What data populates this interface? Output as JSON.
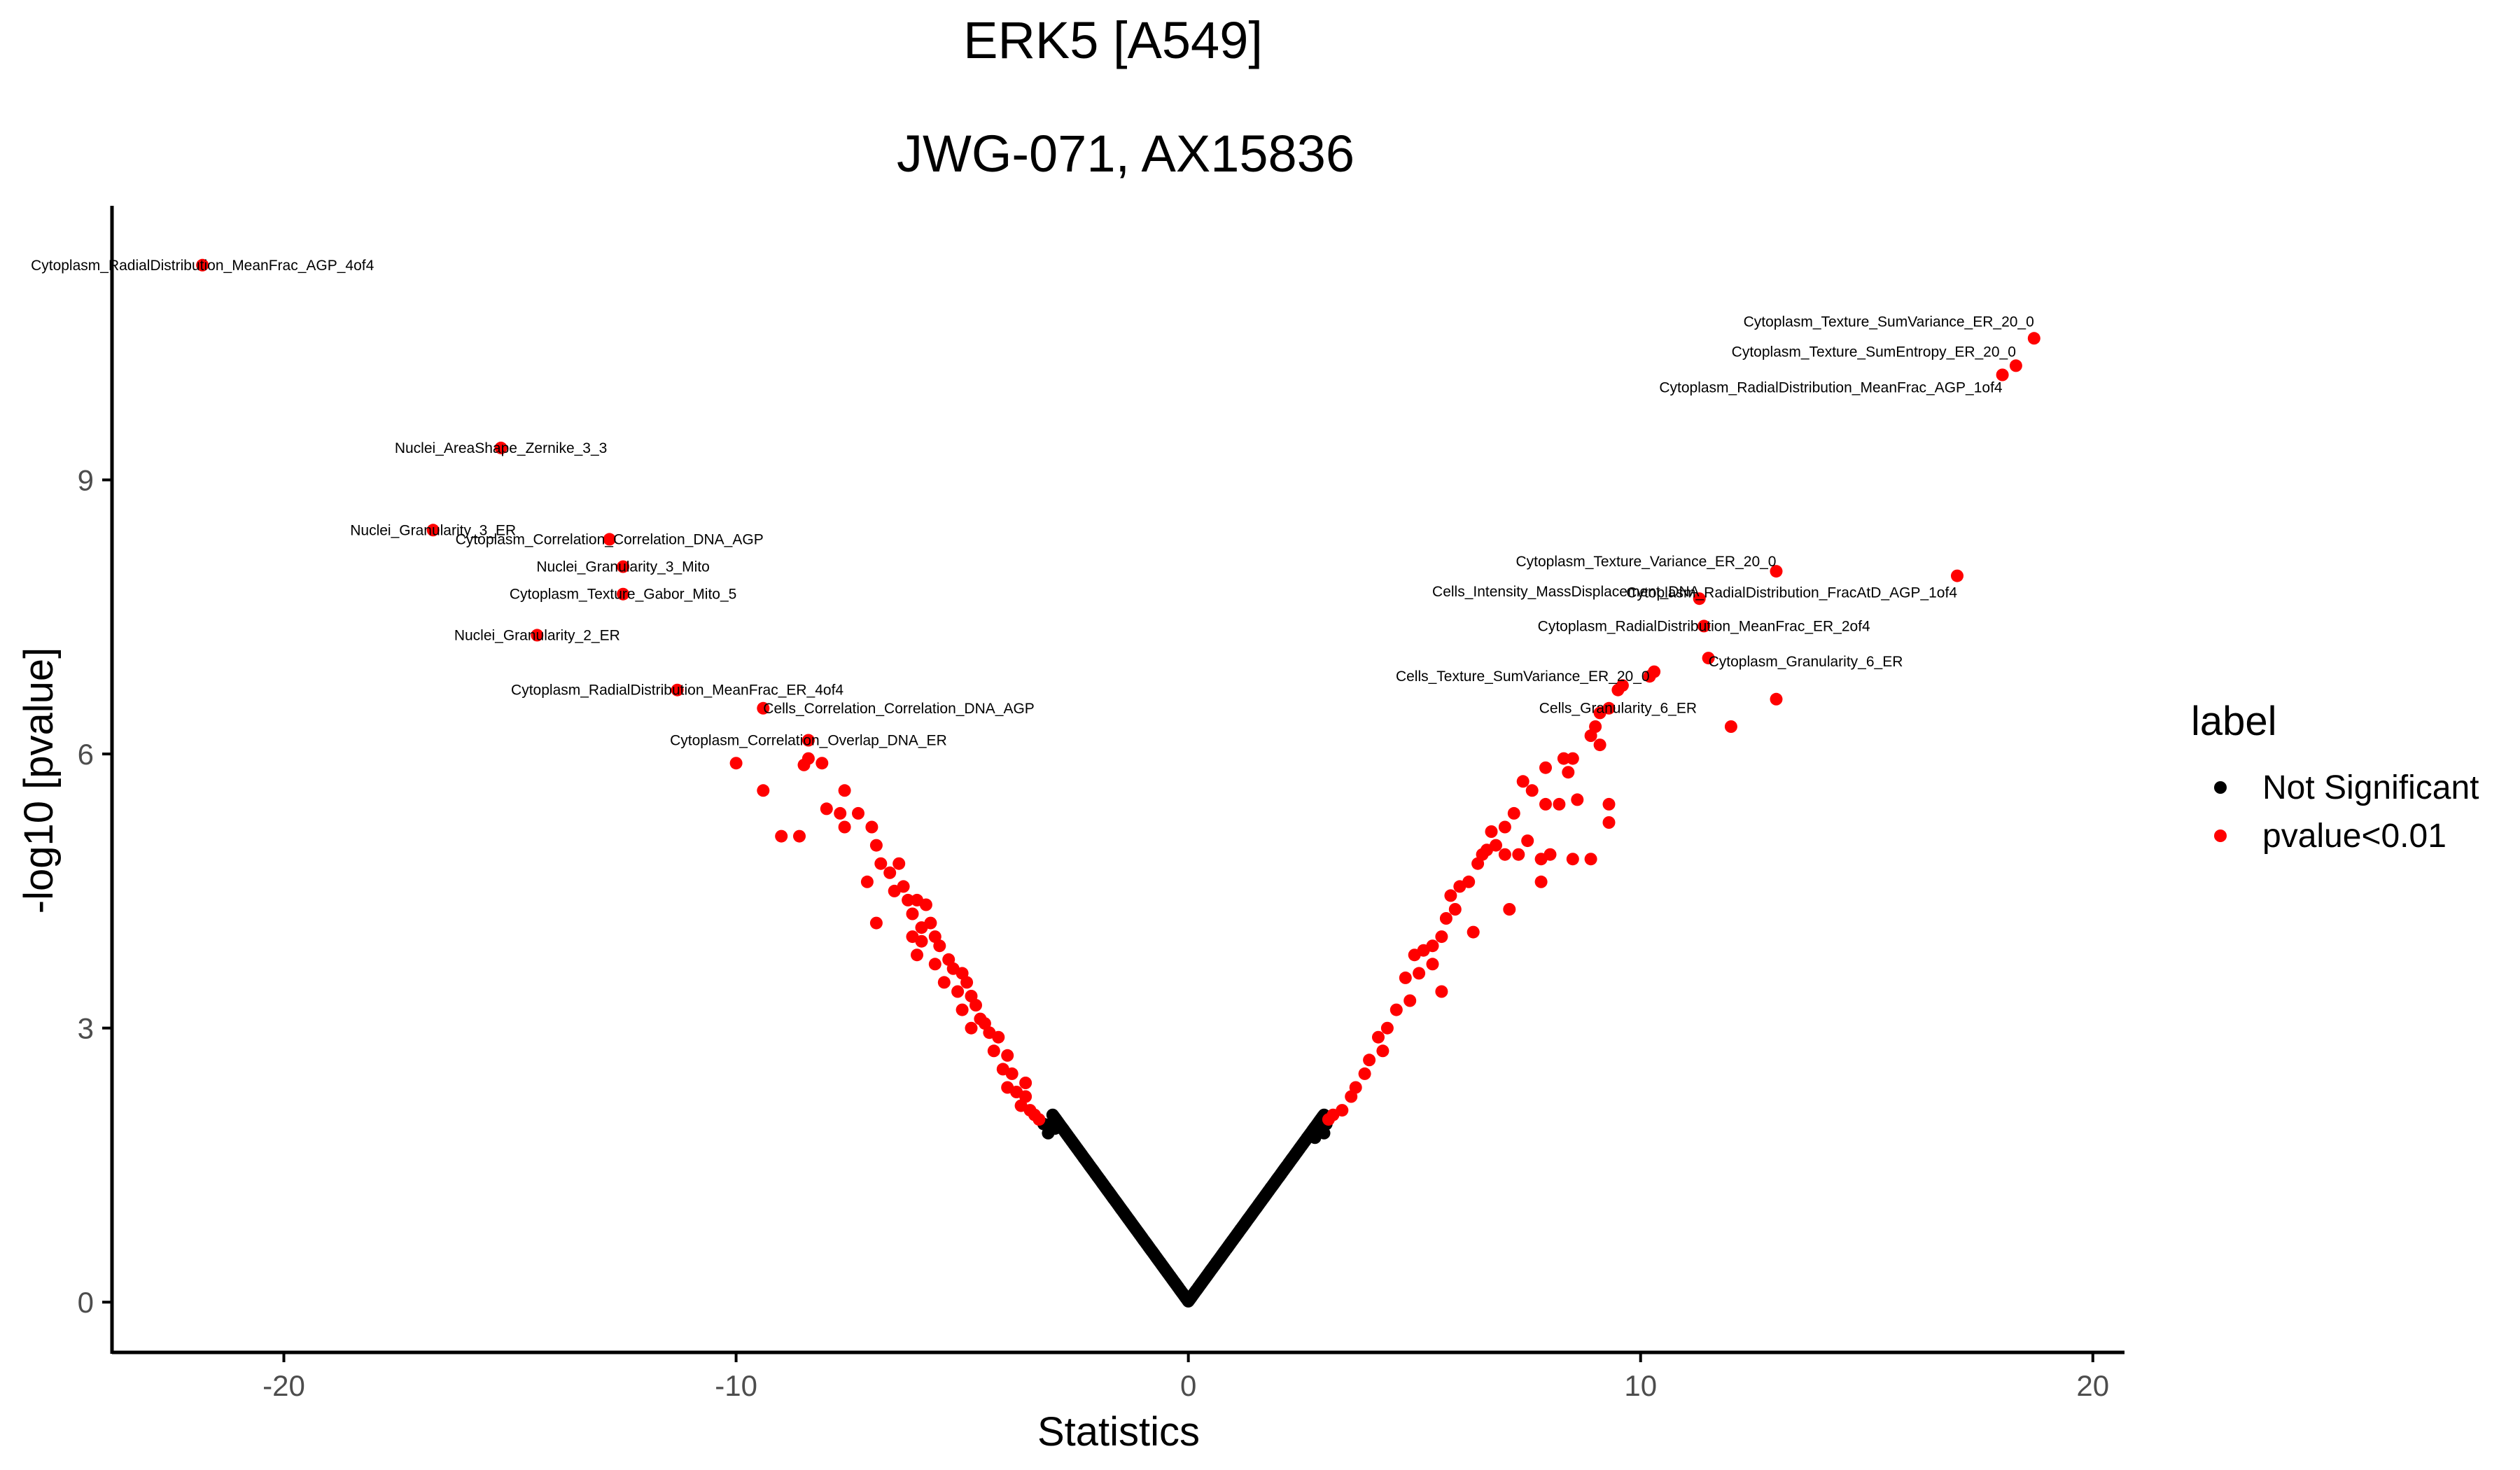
{
  "chart_data": {
    "type": "scatter",
    "title": "ERK5 [A549]",
    "subtitle": "JWG-071, AX15836",
    "xlabel": "Statistics",
    "ylabel": "-log10 [pvalue]",
    "xlim": [
      -23.8,
      20.7
    ],
    "ylim": [
      -0.55,
      12.0
    ],
    "xticks": [
      -20,
      -10,
      0,
      10,
      20
    ],
    "yticks": [
      0,
      3,
      6,
      9
    ],
    "grid": false,
    "legend": {
      "title": "label",
      "position": "right",
      "entries": [
        {
          "label": "Not Significant",
          "color": "#000000"
        },
        {
          "label": "pvalue<0.01",
          "color": "#ff0000"
        }
      ]
    },
    "series": [
      {
        "name": "pvalue<0.01",
        "color": "#ff0000",
        "points": [
          [
            -21.8,
            11.35
          ],
          [
            -15.2,
            9.35
          ],
          [
            -16.7,
            8.45
          ],
          [
            -12.8,
            8.35
          ],
          [
            -12.5,
            8.05
          ],
          [
            -12.5,
            7.75
          ],
          [
            -14.4,
            7.3
          ],
          [
            -11.3,
            6.7
          ],
          [
            -9.4,
            6.5
          ],
          [
            -8.4,
            6.15
          ],
          [
            -8.4,
            5.95
          ],
          [
            -8.1,
            5.9
          ],
          [
            -8.5,
            5.88
          ],
          [
            -10.0,
            5.9
          ],
          [
            -9.4,
            5.6
          ],
          [
            -7.6,
            5.6
          ],
          [
            -7.7,
            5.35
          ],
          [
            -8.0,
            5.4
          ],
          [
            -7.3,
            5.35
          ],
          [
            -7.6,
            5.2
          ],
          [
            -7.0,
            5.2
          ],
          [
            -6.9,
            5.0
          ],
          [
            -9.0,
            5.1
          ],
          [
            -8.6,
            5.1
          ],
          [
            -6.8,
            4.8
          ],
          [
            -7.1,
            4.6
          ],
          [
            -6.6,
            4.7
          ],
          [
            -6.4,
            4.8
          ],
          [
            -6.5,
            4.5
          ],
          [
            -6.3,
            4.55
          ],
          [
            -6.2,
            4.4
          ],
          [
            -6.0,
            4.4
          ],
          [
            -5.8,
            4.35
          ],
          [
            -6.1,
            4.25
          ],
          [
            -6.9,
            4.15
          ],
          [
            -5.9,
            4.1
          ],
          [
            -5.7,
            4.15
          ],
          [
            -6.1,
            4.0
          ],
          [
            -5.6,
            4.0
          ],
          [
            -5.9,
            3.95
          ],
          [
            -5.5,
            3.9
          ],
          [
            -6.0,
            3.8
          ],
          [
            -5.6,
            3.7
          ],
          [
            -5.3,
            3.75
          ],
          [
            -5.2,
            3.65
          ],
          [
            -5.0,
            3.6
          ],
          [
            -5.4,
            3.5
          ],
          [
            -4.9,
            3.5
          ],
          [
            -5.1,
            3.4
          ],
          [
            -4.8,
            3.35
          ],
          [
            -4.7,
            3.25
          ],
          [
            -5.0,
            3.2
          ],
          [
            -4.6,
            3.1
          ],
          [
            -4.5,
            3.05
          ],
          [
            -4.8,
            3.0
          ],
          [
            -4.4,
            2.95
          ],
          [
            -4.2,
            2.9
          ],
          [
            -4.3,
            2.75
          ],
          [
            -4.0,
            2.7
          ],
          [
            -4.1,
            2.55
          ],
          [
            -3.9,
            2.5
          ],
          [
            -4.0,
            2.35
          ],
          [
            -3.8,
            2.3
          ],
          [
            -3.6,
            2.25
          ],
          [
            -3.7,
            2.15
          ],
          [
            -3.5,
            2.1
          ],
          [
            -3.4,
            2.05
          ],
          [
            -3.6,
            2.4
          ],
          [
            -3.3,
            2.0
          ],
          [
            18.7,
            10.55
          ],
          [
            18.3,
            10.25
          ],
          [
            18.0,
            10.15
          ],
          [
            17.0,
            7.95
          ],
          [
            13.0,
            8.0
          ],
          [
            11.3,
            7.7
          ],
          [
            11.4,
            7.4
          ],
          [
            11.5,
            7.05
          ],
          [
            10.3,
            6.9
          ],
          [
            10.2,
            6.85
          ],
          [
            9.5,
            6.7
          ],
          [
            9.6,
            6.75
          ],
          [
            13.0,
            6.6
          ],
          [
            12.0,
            6.3
          ],
          [
            9.3,
            6.5
          ],
          [
            9.1,
            6.45
          ],
          [
            9.0,
            6.3
          ],
          [
            8.9,
            6.2
          ],
          [
            9.1,
            6.1
          ],
          [
            8.3,
            5.95
          ],
          [
            8.5,
            5.95
          ],
          [
            7.9,
            5.85
          ],
          [
            8.4,
            5.8
          ],
          [
            7.6,
            5.6
          ],
          [
            7.4,
            5.7
          ],
          [
            9.3,
            5.45
          ],
          [
            9.3,
            5.25
          ],
          [
            8.6,
            5.5
          ],
          [
            8.2,
            5.45
          ],
          [
            7.9,
            5.45
          ],
          [
            7.2,
            5.35
          ],
          [
            7.0,
            5.2
          ],
          [
            6.7,
            5.15
          ],
          [
            7.5,
            5.05
          ],
          [
            6.8,
            5.0
          ],
          [
            6.6,
            4.95
          ],
          [
            6.5,
            4.9
          ],
          [
            7.0,
            4.9
          ],
          [
            7.3,
            4.9
          ],
          [
            7.8,
            4.85
          ],
          [
            8.0,
            4.9
          ],
          [
            8.5,
            4.85
          ],
          [
            8.9,
            4.85
          ],
          [
            6.4,
            4.8
          ],
          [
            6.2,
            4.6
          ],
          [
            7.8,
            4.6
          ],
          [
            6.0,
            4.55
          ],
          [
            5.8,
            4.45
          ],
          [
            5.9,
            4.3
          ],
          [
            7.1,
            4.3
          ],
          [
            5.7,
            4.2
          ],
          [
            6.3,
            4.05
          ],
          [
            5.6,
            4.0
          ],
          [
            5.4,
            3.9
          ],
          [
            5.2,
            3.85
          ],
          [
            5.0,
            3.8
          ],
          [
            5.4,
            3.7
          ],
          [
            5.1,
            3.6
          ],
          [
            4.8,
            3.55
          ],
          [
            5.6,
            3.4
          ],
          [
            4.9,
            3.3
          ],
          [
            4.6,
            3.2
          ],
          [
            4.4,
            3.0
          ],
          [
            4.2,
            2.9
          ],
          [
            4.3,
            2.75
          ],
          [
            4.0,
            2.65
          ],
          [
            3.9,
            2.5
          ],
          [
            3.7,
            2.35
          ],
          [
            3.6,
            2.25
          ],
          [
            3.4,
            2.1
          ],
          [
            3.2,
            2.05
          ],
          [
            3.1,
            2.0
          ]
        ]
      },
      {
        "name": "Not Significant",
        "color": "#000000",
        "points": []
      }
    ],
    "annotations": [
      {
        "text": "Cytoplasm_RadialDistribution_MeanFrac_AGP_4of4",
        "x": -21.8,
        "y": 11.35,
        "anchor": "middle",
        "dy": 0
      },
      {
        "text": "Nuclei_AreaShape_Zernike_3_3",
        "x": -15.2,
        "y": 9.35,
        "anchor": "middle",
        "dy": 0
      },
      {
        "text": "Nuclei_Granularity_3_ER",
        "x": -16.7,
        "y": 8.45,
        "anchor": "middle",
        "dy": 0
      },
      {
        "text": "Cytoplasm_Correlation_Correlation_DNA_AGP",
        "x": -12.8,
        "y": 8.35,
        "anchor": "middle",
        "dy": 0
      },
      {
        "text": "Nuclei_Granularity_3_Mito",
        "x": -12.5,
        "y": 8.05,
        "anchor": "middle",
        "dy": 0
      },
      {
        "text": "Cytoplasm_Texture_Gabor_Mito_5",
        "x": -12.5,
        "y": 7.75,
        "anchor": "middle",
        "dy": 0
      },
      {
        "text": "Nuclei_Granularity_2_ER",
        "x": -14.4,
        "y": 7.3,
        "anchor": "middle",
        "dy": 0
      },
      {
        "text": "Cytoplasm_RadialDistribution_MeanFrac_ER_4of4",
        "x": -11.3,
        "y": 6.7,
        "anchor": "middle",
        "dy": 0
      },
      {
        "text": "Cells_Correlation_Correlation_DNA_AGP",
        "x": -9.4,
        "y": 6.5,
        "anchor": "start",
        "dy": 0
      },
      {
        "text": "Cytoplasm_Correlation_Overlap_DNA_ER",
        "x": -8.4,
        "y": 6.15,
        "anchor": "middle",
        "dy": 0
      },
      {
        "text": "Cytoplasm_Texture_SumVariance_ER_20_0",
        "x": 18.7,
        "y": 10.55,
        "anchor": "end",
        "dy": -24
      },
      {
        "text": "Cytoplasm_Texture_SumEntropy_ER_20_0",
        "x": 18.3,
        "y": 10.25,
        "anchor": "end",
        "dy": -20
      },
      {
        "text": "Cytoplasm_RadialDistribution_MeanFrac_AGP_1of4",
        "x": 18.0,
        "y": 10.15,
        "anchor": "end",
        "dy": 18
      },
      {
        "text": "Cytoplasm_RadialDistribution_FracAtD_AGP_1of4",
        "x": 17.0,
        "y": 7.95,
        "anchor": "end",
        "dy": 24
      },
      {
        "text": "Cytoplasm_Texture_Variance_ER_20_0",
        "x": 13.0,
        "y": 8.0,
        "anchor": "end",
        "dy": -14
      },
      {
        "text": "Cells_Intensity_MassDisplacement_DNA",
        "x": 11.3,
        "y": 7.7,
        "anchor": "end",
        "dy": -10
      },
      {
        "text": "Cytoplasm_RadialDistribution_MeanFrac_ER_2of4",
        "x": 11.4,
        "y": 7.4,
        "anchor": "middle",
        "dy": 0
      },
      {
        "text": "Cytoplasm_Granularity_6_ER",
        "x": 11.5,
        "y": 7.05,
        "anchor": "start",
        "dy": 5
      },
      {
        "text": "Cells_Texture_SumVariance_ER_20_0",
        "x": 10.2,
        "y": 6.85,
        "anchor": "end",
        "dy": 0
      },
      {
        "text": "Cells_Granularity_6_ER",
        "x": 9.5,
        "y": 6.7,
        "anchor": "middle",
        "dy": 26
      }
    ]
  }
}
